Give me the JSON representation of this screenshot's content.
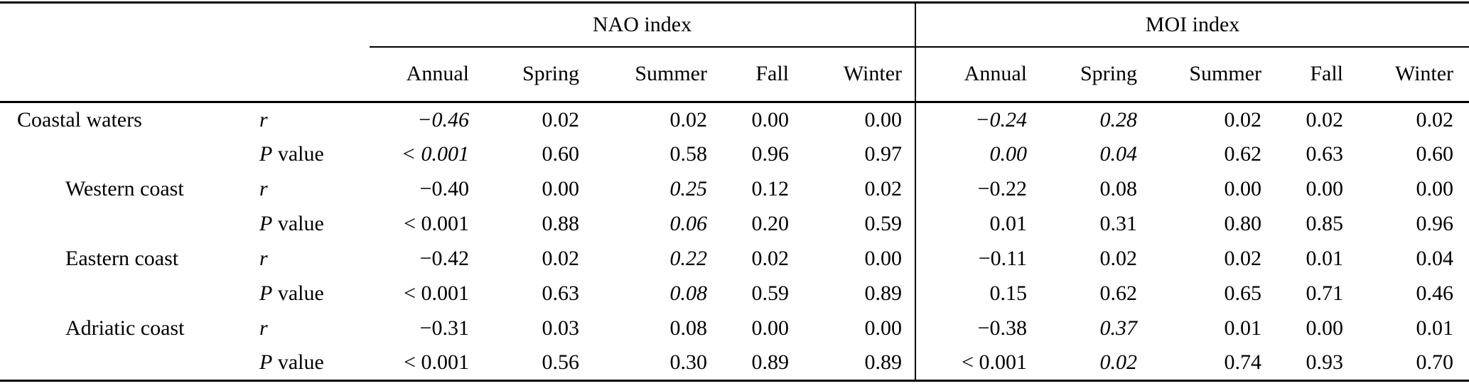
{
  "table": {
    "group_headers": {
      "nao": "NAO index",
      "moi": "MOI index"
    },
    "season_headers": [
      "Annual",
      "Spring",
      "Summer",
      "Fall",
      "Winter"
    ],
    "rows": [
      {
        "region": "Coastal waters",
        "stat_it": "r",
        "stat_rm": "",
        "cells": [
          {
            "v": "−0.46",
            "em": true
          },
          {
            "v": "0.02"
          },
          {
            "v": "0.02"
          },
          {
            "v": "0.00"
          },
          {
            "v": "0.00"
          },
          {
            "v": "−0.24",
            "em": true
          },
          {
            "v": "0.28",
            "em": true
          },
          {
            "v": "0.02"
          },
          {
            "v": "0.02"
          },
          {
            "v": "0.02"
          }
        ]
      },
      {
        "region": "",
        "stat_it": "P",
        "stat_rm": "value",
        "cells": [
          {
            "v": "< 0.001",
            "em": true
          },
          {
            "v": "0.60"
          },
          {
            "v": "0.58"
          },
          {
            "v": "0.96"
          },
          {
            "v": "0.97"
          },
          {
            "v": "0.00",
            "em": true
          },
          {
            "v": "0.04",
            "em": true
          },
          {
            "v": "0.62"
          },
          {
            "v": "0.63"
          },
          {
            "v": "0.60"
          }
        ]
      },
      {
        "region": "Western coast",
        "stat_it": "r",
        "stat_rm": "",
        "cells": [
          {
            "v": "−0.40"
          },
          {
            "v": "0.00"
          },
          {
            "v": "0.25",
            "em": true
          },
          {
            "v": "0.12"
          },
          {
            "v": "0.02"
          },
          {
            "v": "−0.22"
          },
          {
            "v": "0.08"
          },
          {
            "v": "0.00"
          },
          {
            "v": "0.00"
          },
          {
            "v": "0.00"
          }
        ]
      },
      {
        "region": "",
        "stat_it": "P",
        "stat_rm": "value",
        "cells": [
          {
            "v": "< 0.001"
          },
          {
            "v": "0.88"
          },
          {
            "v": "0.06",
            "em": true
          },
          {
            "v": "0.20"
          },
          {
            "v": "0.59"
          },
          {
            "v": "0.01"
          },
          {
            "v": "0.31"
          },
          {
            "v": "0.80"
          },
          {
            "v": "0.85"
          },
          {
            "v": "0.96"
          }
        ]
      },
      {
        "region": "Eastern coast",
        "stat_it": "r",
        "stat_rm": "",
        "cells": [
          {
            "v": "−0.42"
          },
          {
            "v": "0.02"
          },
          {
            "v": "0.22",
            "em": true
          },
          {
            "v": "0.02"
          },
          {
            "v": "0.00"
          },
          {
            "v": "−0.11"
          },
          {
            "v": "0.02"
          },
          {
            "v": "0.02"
          },
          {
            "v": "0.01"
          },
          {
            "v": "0.04"
          }
        ]
      },
      {
        "region": "",
        "stat_it": "P",
        "stat_rm": "value",
        "cells": [
          {
            "v": "< 0.001"
          },
          {
            "v": "0.63"
          },
          {
            "v": "0.08",
            "em": true
          },
          {
            "v": "0.59"
          },
          {
            "v": "0.89"
          },
          {
            "v": "0.15"
          },
          {
            "v": "0.62"
          },
          {
            "v": "0.65"
          },
          {
            "v": "0.71"
          },
          {
            "v": "0.46"
          }
        ]
      },
      {
        "region": "Adriatic coast",
        "stat_it": "r",
        "stat_rm": "",
        "cells": [
          {
            "v": "−0.31"
          },
          {
            "v": "0.03"
          },
          {
            "v": "0.08"
          },
          {
            "v": "0.00"
          },
          {
            "v": "0.00"
          },
          {
            "v": "−0.38"
          },
          {
            "v": "0.37",
            "em": true
          },
          {
            "v": "0.01"
          },
          {
            "v": "0.00"
          },
          {
            "v": "0.01"
          }
        ]
      },
      {
        "region": "",
        "stat_it": "P",
        "stat_rm": "value",
        "cells": [
          {
            "v": "< 0.001"
          },
          {
            "v": "0.56"
          },
          {
            "v": "0.30"
          },
          {
            "v": "0.89"
          },
          {
            "v": "0.89"
          },
          {
            "v": "< 0.001"
          },
          {
            "v": "0.02",
            "em": true
          },
          {
            "v": "0.74"
          },
          {
            "v": "0.93"
          },
          {
            "v": "0.70"
          }
        ]
      }
    ],
    "text_color": "#000000",
    "background_color": "#ffffff"
  }
}
